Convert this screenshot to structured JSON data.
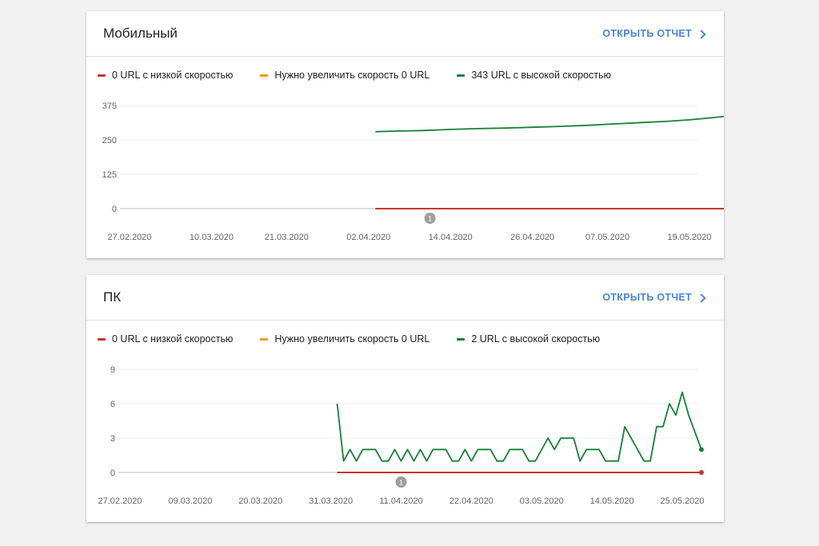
{
  "colors": {
    "poor": "#c5382b",
    "needs": "#f29900",
    "good": "#188038",
    "link": "#4a86d8"
  },
  "cards": [
    {
      "title": "Мобильный",
      "open_label": "ОТКРЫТЬ ОТЧЕТ",
      "legend": [
        "0 URL с низкой скоростью",
        "Нужно увеличить скорость 0 URL",
        "343 URL с высокой скоростью"
      ]
    },
    {
      "title": "ПК",
      "open_label": "ОТКРЫТЬ ОТЧЕТ",
      "legend": [
        "0 URL с низкой скоростью",
        "Нужно увеличить скорость 0 URL",
        "2 URL с высокой скоростью"
      ]
    }
  ],
  "chart_data": [
    {
      "type": "line",
      "x_start": "2020-02-27",
      "x_end": "2020-05-28",
      "x_ticks": [
        "27.02.2020",
        "10.03.2020",
        "21.03.2020",
        "02.04.2020",
        "14.04.2020",
        "26.04.2020",
        "07.05.2020",
        "19.05.2020"
      ],
      "y_ticks": [
        0,
        125,
        250,
        375
      ],
      "ylim": [
        0,
        375
      ],
      "annotation": {
        "label": "1",
        "date": "2020-04-11"
      },
      "series": [
        {
          "key": "good",
          "points": [
            [
              "2020-04-03",
              280
            ],
            [
              "2020-04-06",
              282
            ],
            [
              "2020-04-10",
              284
            ],
            [
              "2020-04-14",
              288
            ],
            [
              "2020-04-18",
              291
            ],
            [
              "2020-04-22",
              293
            ],
            [
              "2020-04-26",
              296
            ],
            [
              "2020-04-30",
              299
            ],
            [
              "2020-05-04",
              303
            ],
            [
              "2020-05-08",
              308
            ],
            [
              "2020-05-12",
              313
            ],
            [
              "2020-05-16",
              318
            ],
            [
              "2020-05-19",
              323
            ],
            [
              "2020-05-22",
              330
            ],
            [
              "2020-05-25",
              338
            ],
            [
              "2020-05-28",
              343
            ]
          ]
        },
        {
          "key": "poor",
          "points": [
            [
              "2020-04-03",
              0
            ],
            [
              "2020-05-28",
              0
            ]
          ]
        }
      ]
    },
    {
      "type": "line",
      "x_start": "2020-02-27",
      "x_end": "2020-05-25",
      "x_ticks": [
        "27.02.2020",
        "09.03.2020",
        "20.03.2020",
        "31.03.2020",
        "11.04.2020",
        "22.04.2020",
        "03.05.2020",
        "14.05.2020",
        "25.05.2020"
      ],
      "y_ticks": [
        0,
        3,
        6,
        9
      ],
      "ylim": [
        0,
        9
      ],
      "annotation": {
        "label": "1",
        "date": "2020-04-11"
      },
      "series": [
        {
          "key": "good",
          "points": [
            [
              "2020-04-01",
              6
            ],
            [
              "2020-04-02",
              1
            ],
            [
              "2020-04-03",
              2
            ],
            [
              "2020-04-04",
              1
            ],
            [
              "2020-04-05",
              2
            ],
            [
              "2020-04-07",
              2
            ],
            [
              "2020-04-08",
              1
            ],
            [
              "2020-04-09",
              1
            ],
            [
              "2020-04-10",
              2
            ],
            [
              "2020-04-11",
              1
            ],
            [
              "2020-04-12",
              2
            ],
            [
              "2020-04-13",
              1
            ],
            [
              "2020-04-14",
              2
            ],
            [
              "2020-04-15",
              1
            ],
            [
              "2020-04-16",
              2
            ],
            [
              "2020-04-18",
              2
            ],
            [
              "2020-04-19",
              1
            ],
            [
              "2020-04-20",
              1
            ],
            [
              "2020-04-21",
              2
            ],
            [
              "2020-04-22",
              1
            ],
            [
              "2020-04-23",
              2
            ],
            [
              "2020-04-25",
              2
            ],
            [
              "2020-04-26",
              1
            ],
            [
              "2020-04-27",
              1
            ],
            [
              "2020-04-28",
              2
            ],
            [
              "2020-04-30",
              2
            ],
            [
              "2020-05-01",
              1
            ],
            [
              "2020-05-02",
              1
            ],
            [
              "2020-05-04",
              3
            ],
            [
              "2020-05-05",
              2
            ],
            [
              "2020-05-06",
              3
            ],
            [
              "2020-05-08",
              3
            ],
            [
              "2020-05-09",
              1
            ],
            [
              "2020-05-10",
              2
            ],
            [
              "2020-05-12",
              2
            ],
            [
              "2020-05-13",
              1
            ],
            [
              "2020-05-15",
              1
            ],
            [
              "2020-05-16",
              4
            ],
            [
              "2020-05-18",
              2
            ],
            [
              "2020-05-19",
              1
            ],
            [
              "2020-05-20",
              1
            ],
            [
              "2020-05-21",
              4
            ],
            [
              "2020-05-22",
              4
            ],
            [
              "2020-05-23",
              6
            ],
            [
              "2020-05-24",
              5
            ],
            [
              "2020-05-25",
              7
            ],
            [
              "2020-05-26",
              5
            ],
            [
              "2020-05-28",
              2
            ]
          ]
        },
        {
          "key": "poor",
          "points": [
            [
              "2020-04-01",
              0
            ],
            [
              "2020-05-28",
              0
            ]
          ]
        }
      ]
    }
  ]
}
